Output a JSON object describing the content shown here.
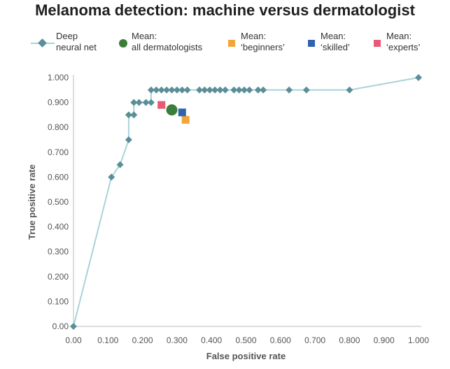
{
  "title": "Melanoma detection: machine versus dermatologist",
  "legend": [
    {
      "label": "Deep\nneural net",
      "shape": "line-diamond",
      "color": "#5a8f9a",
      "line_color": "#a9d3d8"
    },
    {
      "label": "Mean:\nall dermatologists",
      "shape": "circle",
      "color": "#3d7d3a"
    },
    {
      "label": "Mean:\n‘beginners’",
      "shape": "square",
      "color": "#f4a53a"
    },
    {
      "label": "Mean:\n‘skilled’",
      "shape": "square",
      "color": "#2f64ad"
    },
    {
      "label": "Mean:\n‘experts’",
      "shape": "square",
      "color": "#e85a74"
    }
  ],
  "chart_data": {
    "type": "scatter",
    "xlabel": "False positive rate",
    "ylabel": "True positive rate",
    "xlim": [
      0,
      1
    ],
    "ylim": [
      0,
      1
    ],
    "x_ticks": [
      "0.00",
      "0.100",
      "0.200",
      "0.300",
      "0.400",
      "0.500",
      "0.600",
      "0.700",
      "0.800",
      "0.900",
      "1.000"
    ],
    "y_ticks": [
      "0.00",
      "0.100",
      "0.200",
      "0.300",
      "0.400",
      "0.500",
      "0.600",
      "0.700",
      "0.800",
      "0.900",
      "1.000"
    ],
    "grid": false,
    "series": [
      {
        "name": "Deep neural net",
        "kind": "line-markers",
        "color": "#5a8f9a",
        "line_color": "#a9d3d8",
        "x": [
          0.0,
          0.11,
          0.135,
          0.16,
          0.16,
          0.175,
          0.175,
          0.19,
          0.21,
          0.225,
          0.225,
          0.24,
          0.255,
          0.27,
          0.285,
          0.3,
          0.315,
          0.33,
          0.365,
          0.38,
          0.395,
          0.41,
          0.425,
          0.44,
          0.465,
          0.48,
          0.495,
          0.51,
          0.535,
          0.55,
          0.625,
          0.675,
          0.8,
          1.0
        ],
        "y": [
          0.0,
          0.6,
          0.65,
          0.75,
          0.85,
          0.85,
          0.9,
          0.9,
          0.9,
          0.9,
          0.95,
          0.95,
          0.95,
          0.95,
          0.95,
          0.95,
          0.95,
          0.95,
          0.95,
          0.95,
          0.95,
          0.95,
          0.95,
          0.95,
          0.95,
          0.95,
          0.95,
          0.95,
          0.95,
          0.95,
          0.95,
          0.95,
          0.95,
          1.0
        ]
      },
      {
        "name": "Mean: all dermatologists",
        "kind": "circle",
        "color": "#3d7d3a",
        "x": [
          0.285
        ],
        "y": [
          0.87
        ]
      },
      {
        "name": "Mean: ‘beginners’",
        "kind": "square",
        "color": "#f4a53a",
        "x": [
          0.325
        ],
        "y": [
          0.83
        ]
      },
      {
        "name": "Mean: ‘skilled’",
        "kind": "square",
        "color": "#2f64ad",
        "x": [
          0.315
        ],
        "y": [
          0.86
        ]
      },
      {
        "name": "Mean: ‘experts’",
        "kind": "square",
        "color": "#e85a74",
        "x": [
          0.255
        ],
        "y": [
          0.89
        ]
      }
    ]
  }
}
